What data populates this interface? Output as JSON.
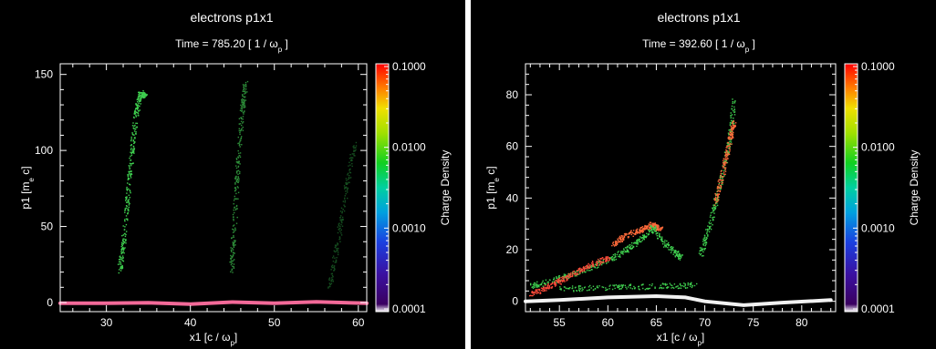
{
  "chart_data": [
    {
      "type": "heatmap",
      "title": "electrons p1x1",
      "time_label": "Time =",
      "time_value": "785.20",
      "time_units_pre": "[ 1 / ",
      "time_units_sym": "ω",
      "time_units_sub": "p",
      "time_units_post": " ]",
      "xlabel_pre": "x1 [c / ",
      "xlabel_sym": "ω",
      "xlabel_sub": "p",
      "xlabel_post": "]",
      "ylabel_pre": "p1 [m",
      "ylabel_sub": "e",
      "ylabel_post": " c]",
      "xlim": [
        24.5,
        61
      ],
      "ylim": [
        -6,
        157
      ],
      "xticks": [
        30,
        40,
        50,
        60
      ],
      "yticks": [
        0,
        50,
        100,
        150
      ],
      "colorbar_label": "Charge Density",
      "colorbar_scale": "log",
      "colorbar_ticks": [
        "0.1000",
        "0.0100",
        "0.0010",
        "0.0001"
      ],
      "features": [
        {
          "kind": "band",
          "color": "#ff6fa0",
          "points": [
            [
              24.5,
              -0.5
            ],
            [
              30,
              -0.5
            ],
            [
              35,
              -0.2
            ],
            [
              40,
              -1
            ],
            [
              45,
              0.3
            ],
            [
              50,
              -0.5
            ],
            [
              55,
              0.5
            ],
            [
              61,
              -0.5
            ]
          ]
        },
        {
          "kind": "streak",
          "color": "#3fcf4f",
          "points": [
            [
              31.5,
              20
            ],
            [
              32,
              40
            ],
            [
              32.5,
              70
            ],
            [
              33,
              100
            ],
            [
              33.5,
              125
            ],
            [
              34,
              138
            ],
            [
              34.6,
              136
            ]
          ]
        },
        {
          "kind": "streak",
          "color": "#2e8f3a",
          "points": [
            [
              44.8,
              20
            ],
            [
              45.2,
              50
            ],
            [
              45.6,
              90
            ],
            [
              46.1,
              125
            ],
            [
              46.5,
              144
            ]
          ]
        },
        {
          "kind": "streak",
          "color": "#164f20",
          "points": [
            [
              56.5,
              10
            ],
            [
              57.5,
              40
            ],
            [
              58.5,
              75
            ],
            [
              59.5,
              105
            ]
          ]
        }
      ]
    },
    {
      "type": "heatmap",
      "title": "electrons p1x1",
      "time_label": "Time =",
      "time_value": "392.60",
      "time_units_pre": "[ 1 / ",
      "time_units_sym": "ω",
      "time_units_sub": "p",
      "time_units_post": " ]",
      "xlabel_pre": "x1 [c / ",
      "xlabel_sym": "ω",
      "xlabel_sub": "p",
      "xlabel_post": "]",
      "ylabel_pre": "p1 [m",
      "ylabel_sub": "e",
      "ylabel_post": " c]",
      "xlim": [
        51.5,
        83.5
      ],
      "ylim": [
        -4,
        92
      ],
      "xticks": [
        55,
        60,
        65,
        70,
        75,
        80
      ],
      "yticks": [
        0,
        20,
        40,
        60,
        80
      ],
      "colorbar_label": "Charge Density",
      "colorbar_scale": "log",
      "colorbar_ticks": [
        "0.1000",
        "0.0100",
        "0.0010",
        "0.0001"
      ],
      "features": [
        {
          "kind": "band",
          "color": "#ffffff",
          "points": [
            [
              51.5,
              0
            ],
            [
              55,
              0.5
            ],
            [
              60,
              1.5
            ],
            [
              65,
              2
            ],
            [
              68,
              1.5
            ],
            [
              70,
              0
            ],
            [
              74,
              -1.5
            ],
            [
              78,
              -0.5
            ],
            [
              83,
              0.5
            ]
          ]
        },
        {
          "kind": "streak",
          "color": "#3fcf4f",
          "points": [
            [
              52,
              6
            ],
            [
              55,
              9
            ],
            [
              58,
              13
            ],
            [
              61,
              18
            ],
            [
              63,
              23
            ],
            [
              64.5,
              28
            ]
          ]
        },
        {
          "kind": "streak",
          "color": "#ff4a3a",
          "points": [
            [
              52,
              3
            ],
            [
              54,
              6
            ],
            [
              56,
              10
            ],
            [
              58,
              14
            ],
            [
              60,
              17
            ]
          ]
        },
        {
          "kind": "streak",
          "color": "#ff6a3a",
          "points": [
            [
              60.5,
              22
            ],
            [
              62,
              26
            ],
            [
              63.5,
              28
            ],
            [
              64.5,
              30
            ],
            [
              65.5,
              28
            ]
          ]
        },
        {
          "kind": "streak",
          "color": "#3fcf4f",
          "points": [
            [
              64.5,
              29
            ],
            [
              66,
              22
            ],
            [
              67.5,
              17
            ]
          ]
        },
        {
          "kind": "streak",
          "color": "#3fcf4f",
          "points": [
            [
              55,
              5
            ],
            [
              60,
              5.5
            ],
            [
              65,
              6
            ],
            [
              69,
              6.5
            ]
          ]
        },
        {
          "kind": "streak",
          "color": "#3fcf4f",
          "points": [
            [
              69.5,
              18
            ],
            [
              70.5,
              30
            ],
            [
              71.5,
              45
            ],
            [
              72.5,
              62
            ],
            [
              73,
              78
            ]
          ]
        },
        {
          "kind": "streak",
          "color": "#ff6a3a",
          "points": [
            [
              71,
              38
            ],
            [
              71.8,
              50
            ],
            [
              72.5,
              62
            ],
            [
              73,
              70
            ]
          ]
        }
      ]
    }
  ]
}
